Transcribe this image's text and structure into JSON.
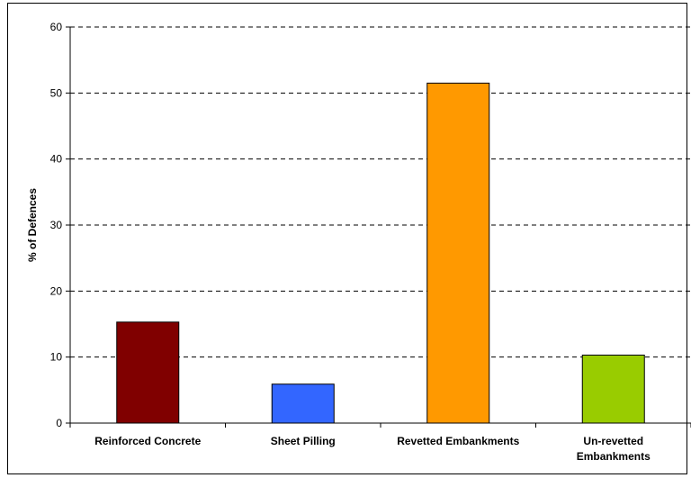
{
  "chart_data": {
    "type": "bar",
    "title": "",
    "xlabel": "",
    "ylabel": "% of Defences",
    "ylim": [
      0,
      60
    ],
    "yticks": [
      0,
      10,
      20,
      30,
      40,
      50,
      60
    ],
    "grid": true,
    "categories": [
      [
        "Reinforced Concrete"
      ],
      [
        "Sheet Pilling"
      ],
      [
        "Revetted Embankments"
      ],
      [
        "Un-revetted",
        "Embankments"
      ]
    ],
    "values": [
      15.3,
      5.9,
      51.5,
      10.3
    ],
    "colors": [
      "#800000",
      "#3366ff",
      "#ff9900",
      "#99cc00"
    ]
  }
}
